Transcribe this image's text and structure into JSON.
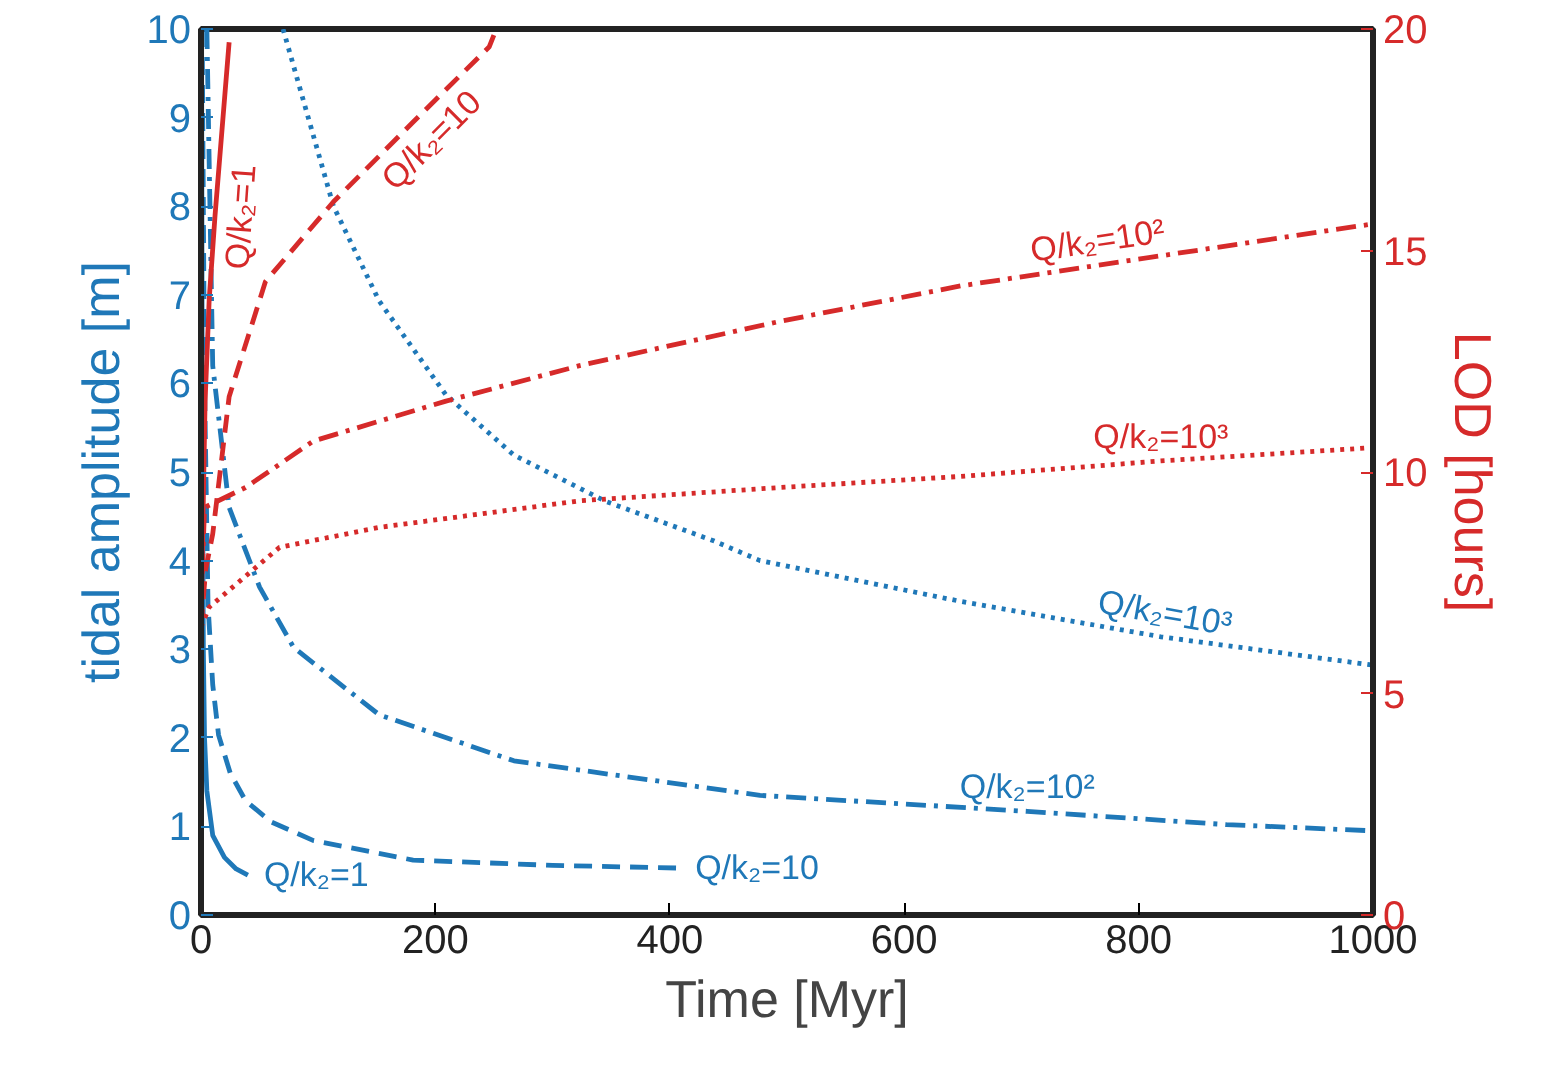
{
  "chart_data": {
    "type": "line",
    "xlabel": "Time [Myr]",
    "ylabel": "tidal amplitude [m]",
    "y2label": "LOD [hours]",
    "xlim": [
      0,
      1000
    ],
    "xticks": [
      0,
      200,
      400,
      600,
      800,
      1000
    ],
    "ylim": [
      0,
      10
    ],
    "yticks": [
      0,
      1,
      2,
      3,
      4,
      5,
      6,
      7,
      8,
      9,
      10
    ],
    "y2lim": [
      0,
      20
    ],
    "y2ticks": [
      0,
      5,
      10,
      15,
      20
    ],
    "grid": false,
    "series": [
      {
        "color": "#1f78b8",
        "line_style": "solid",
        "x": [
          0.5,
          1,
          2,
          3,
          5,
          10,
          20,
          30,
          40
        ],
        "values": [
          10,
          6,
          3,
          2,
          1.4,
          0.9,
          0.65,
          0.52,
          0.45
        ]
      },
      {
        "color": "#1f78b8",
        "line_style": "dashed",
        "x": [
          1,
          3,
          6,
          10,
          15,
          25,
          38,
          60,
          96,
          181,
          300,
          408
        ],
        "values": [
          10,
          6,
          3.5,
          2.6,
          2.03,
          1.6,
          1.29,
          1.05,
          0.84,
          0.62,
          0.56,
          0.53
        ]
      },
      {
        "color": "#1f78b8",
        "line_style": "dashdot",
        "x": [
          5,
          10,
          24,
          50,
          79,
          152,
          267,
          477,
          705,
          875,
          1000
        ],
        "values": [
          10,
          6.2,
          4.6,
          3.7,
          3.02,
          2.26,
          1.74,
          1.35,
          1.17,
          1.02,
          0.95
        ]
      },
      {
        "color": "#1f78b8",
        "line_style": "dotted",
        "x": [
          70,
          113,
          152,
          209,
          267,
          345,
          438,
          477,
          648,
          819,
          1000
        ],
        "values": [
          10,
          8.0,
          6.93,
          5.87,
          5.19,
          4.67,
          4.22,
          4.0,
          3.54,
          3.14,
          2.82
        ]
      },
      {
        "color": "#d62a2a",
        "line_style": "solid",
        "axis": "y2",
        "x": [
          0,
          3.5,
          7,
          12,
          24
        ],
        "values": [
          6.5,
          11.6,
          13.9,
          15.8,
          19.7
        ]
      },
      {
        "color": "#d62a2a",
        "line_style": "dashed",
        "axis": "y2",
        "x": [
          0,
          4,
          10,
          24,
          55,
          113,
          181,
          246,
          252
        ],
        "values": [
          6.5,
          7.8,
          8.6,
          11.7,
          14.3,
          16.1,
          17.9,
          19.6,
          20
        ]
      },
      {
        "color": "#d62a2a",
        "line_style": "dashdot",
        "axis": "y2",
        "x": [
          0,
          3,
          38,
          96,
          209,
          323,
          494,
          648,
          1000
        ],
        "values": [
          6.8,
          9.2,
          9.65,
          10.7,
          11.6,
          12.4,
          13.4,
          14.2,
          15.6
        ]
      },
      {
        "color": "#d62a2a",
        "line_style": "dotted",
        "axis": "y2",
        "x": [
          0,
          7,
          67,
          152,
          323,
          494,
          648,
          819,
          1000
        ],
        "values": [
          6.5,
          6.95,
          8.3,
          8.75,
          9.35,
          9.65,
          9.9,
          10.25,
          10.55
        ]
      }
    ],
    "annotations": [
      {
        "text": "Q/k₂=1",
        "x": 40,
        "y": 0.45
      },
      {
        "text": "Q/k₂=10",
        "x": 408,
        "y": 0.53
      },
      {
        "text": "Q/k₂=10²",
        "x": 705,
        "y": 1.17
      },
      {
        "text": "Q/k₂=10³",
        "x": 819,
        "y": 3.14
      },
      {
        "text": "Q/k₂=10³",
        "x": 819,
        "y": 5.125
      },
      {
        "text": "Q/k₂=10²",
        "x": 768,
        "y": 7.34
      },
      {
        "text": "Q/k₂=10",
        "x": 181,
        "y": 8.95
      },
      {
        "text": "Q/k₂=1",
        "x": 12,
        "y": 7.9
      }
    ]
  }
}
